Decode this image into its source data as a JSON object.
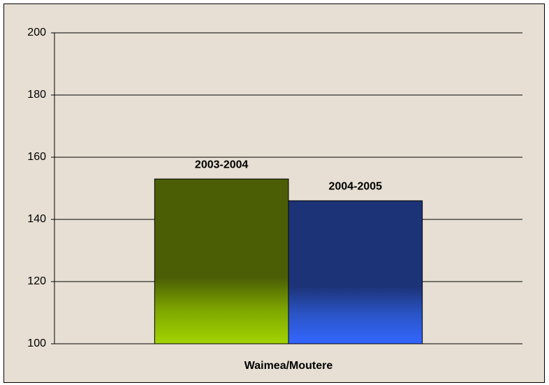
{
  "chart_data": {
    "type": "bar",
    "categories": [
      "Waimea/Moutere"
    ],
    "series": [
      {
        "name": "2003-2004",
        "color": "#4b5e05",
        "values": [
          153
        ]
      },
      {
        "name": "2004-2005",
        "color": "#1c3378",
        "values": [
          146
        ]
      }
    ],
    "ylim": [
      100,
      200
    ],
    "yticks": [
      100,
      120,
      140,
      160,
      180,
      200
    ],
    "grid": true
  }
}
